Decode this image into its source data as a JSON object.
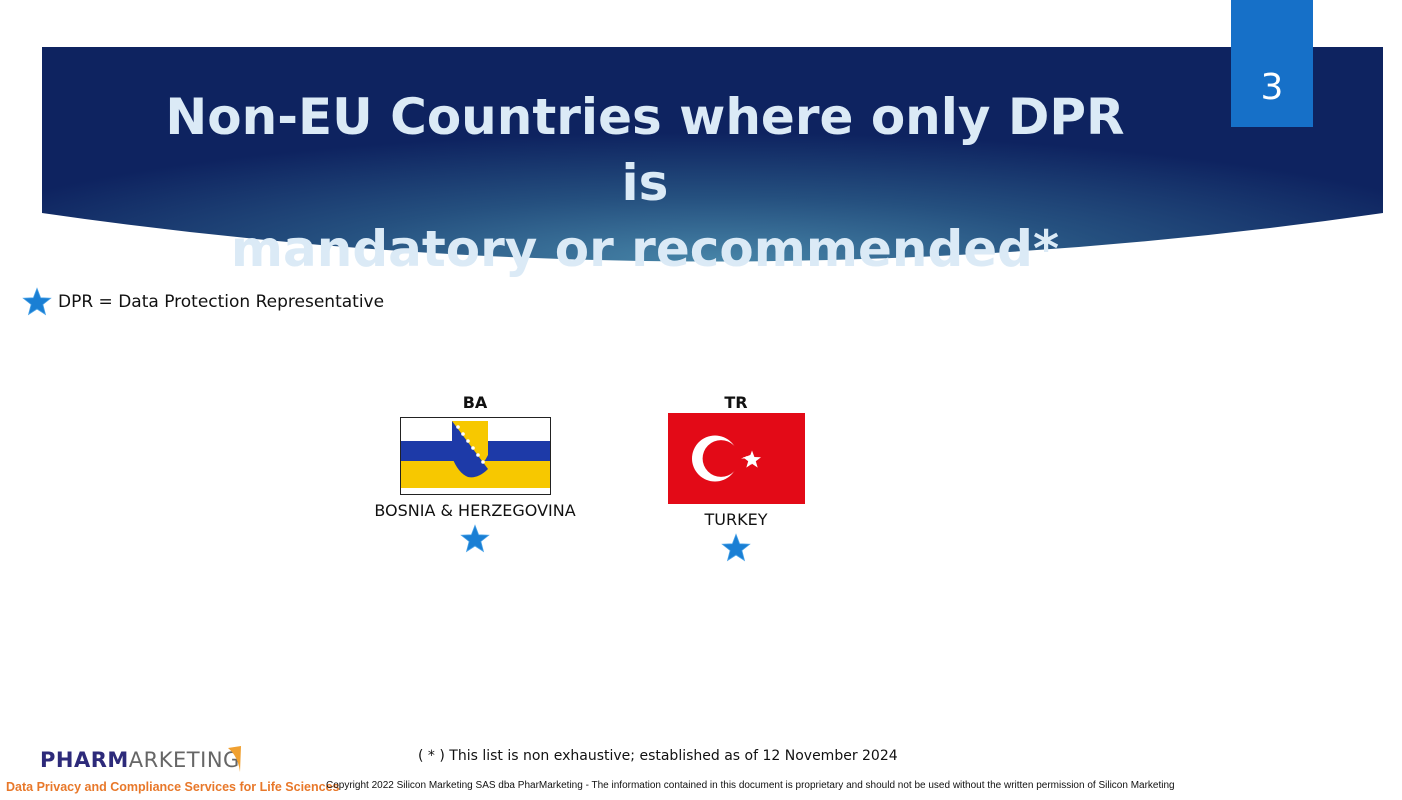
{
  "slide": {
    "title_line1": "Non-EU Countries where only DPR is",
    "title_line2": "mandatory or recommended*",
    "number": "3"
  },
  "legend": {
    "icon": "star-icon",
    "text": "DPR = Data Protection Representative",
    "star_color": "#1a7fd4"
  },
  "countries": [
    {
      "code": "BA",
      "name": "BOSNIA & HERZEGOVINA",
      "dpr": true
    },
    {
      "code": "TR",
      "name": "TURKEY",
      "dpr": true
    }
  ],
  "footnote": "( * ) This list is non exhaustive; established as of 12 November 2024",
  "footer": {
    "logo_bold": "PHARM",
    "logo_light": "ARKETING",
    "tagline": "Data Privacy and Compliance Services for Life Sciences",
    "copyright": "Copyright 2022 Silicon Marketing SAS dba PharMarketing  - The information contained in this document is proprietary and should not be used without the written permission of Silicon Marketing"
  },
  "colors": {
    "banner_dark": "#0e2360",
    "banner_light": "#3f7fa6",
    "slide_number_bg": "#1670c8",
    "tagline": "#e8782a",
    "logo": "#2d2a7a"
  }
}
